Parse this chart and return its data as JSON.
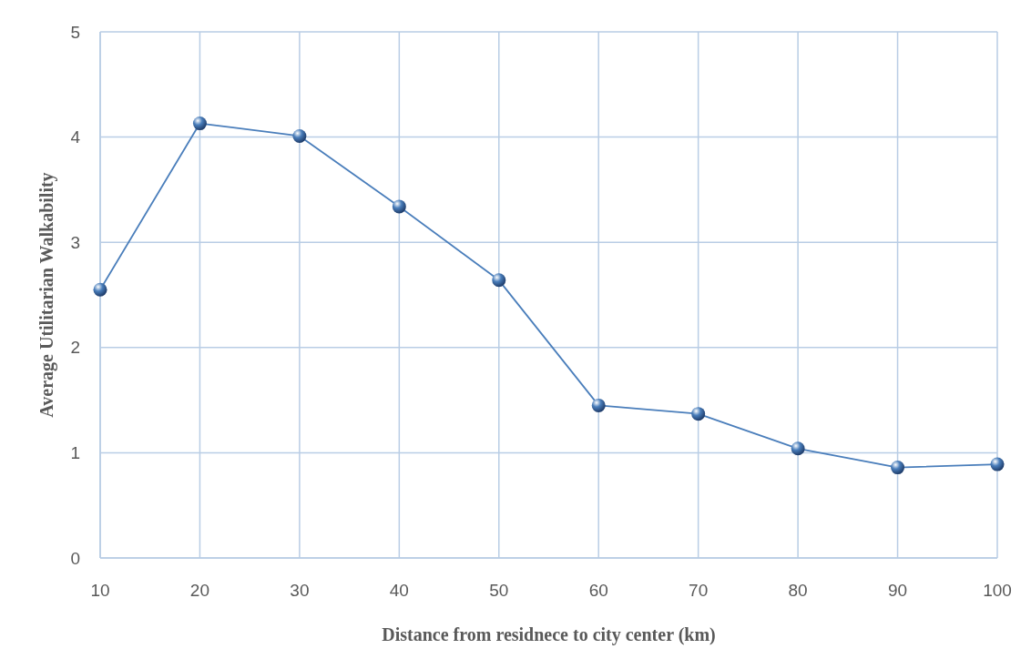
{
  "chart_data": {
    "type": "line",
    "xlabel": "Distance from residnece to city center (km)",
    "ylabel": "Average Utilitarian Walkability",
    "x": [
      10,
      20,
      30,
      40,
      50,
      60,
      70,
      80,
      90,
      100
    ],
    "series": [
      {
        "color": "#4a7ebb",
        "values": [
          2.55,
          4.13,
          4.01,
          3.34,
          2.64,
          1.45,
          1.37,
          1.04,
          0.86,
          0.89
        ]
      }
    ],
    "xlim": [
      10,
      100
    ],
    "xticks": [
      10,
      20,
      30,
      40,
      50,
      60,
      70,
      80,
      90,
      100
    ],
    "ylim": [
      0,
      5
    ],
    "yticks": [
      0,
      1,
      2,
      3,
      4,
      5
    ],
    "grid": true,
    "marker": "circle",
    "line_style": "solid"
  }
}
